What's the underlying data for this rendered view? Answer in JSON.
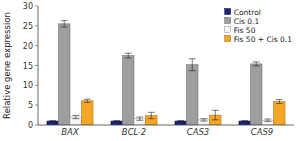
{
  "chart_data": {
    "type": "bar",
    "categories": [
      "BAX",
      "BCL-2",
      "CAS3",
      "CAS9"
    ],
    "series": [
      {
        "name": "Control",
        "color": "#1a237e",
        "values": [
          1.0,
          1.0,
          1.0,
          1.0
        ],
        "errors": [
          0.1,
          0.1,
          0.1,
          0.1
        ]
      },
      {
        "name": "Cis 0.1",
        "color": "#9e9e9e",
        "values": [
          25.5,
          17.5,
          15.2,
          15.4
        ],
        "errors": [
          0.8,
          0.6,
          1.5,
          0.5
        ]
      },
      {
        "name": "Fis 50",
        "color": "#f5f5f5",
        "values": [
          2.0,
          1.6,
          1.3,
          1.2
        ],
        "errors": [
          0.4,
          0.4,
          0.3,
          0.3
        ]
      },
      {
        "name": "Fis 50 + Cis 0.1",
        "color": "#f5a623",
        "values": [
          6.1,
          2.4,
          2.5,
          5.9
        ],
        "errors": [
          0.4,
          0.8,
          1.2,
          0.5
        ]
      }
    ],
    "ylabel": "Relative gene expression",
    "ylim": [
      0,
      30
    ],
    "yticks": [
      0,
      5,
      10,
      15,
      20,
      25,
      30
    ],
    "legend": "upper right",
    "grid": false
  }
}
